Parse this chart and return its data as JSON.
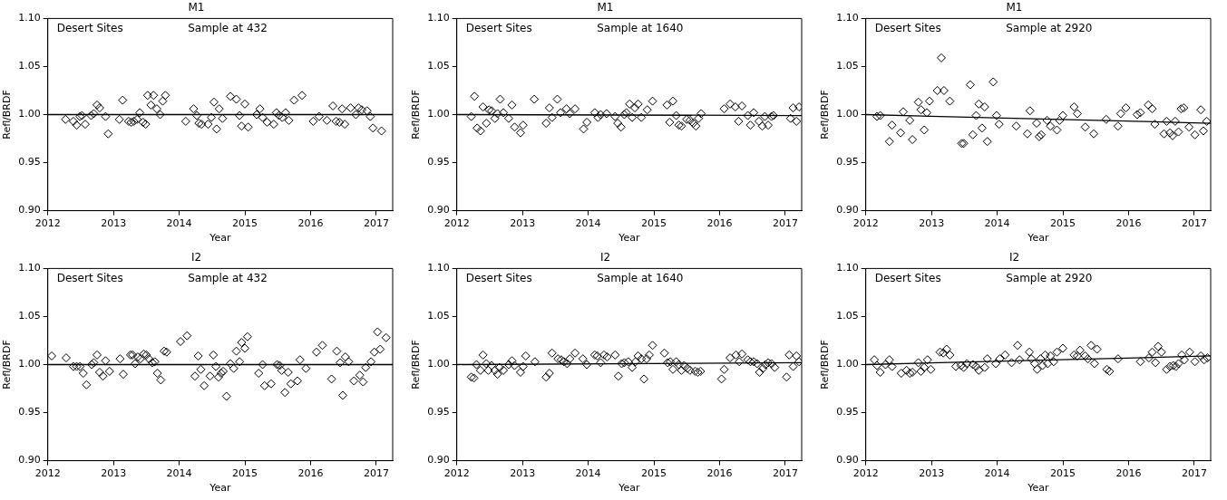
{
  "chart_data": [
    {
      "type": "scatter",
      "title": "M1",
      "xlabel": "Year",
      "ylabel": "Refl/BRDF",
      "annotations": [
        "Desert Sites",
        "Sample at 432"
      ],
      "xlim": [
        2012,
        2017.25
      ],
      "xticks": [
        2012,
        2013,
        2014,
        2015,
        2016,
        2017
      ],
      "ylim": [
        0.9,
        1.1
      ],
      "yticks": [
        {
          "value": 0.9,
          "label": "0.90"
        },
        {
          "value": 0.95,
          "label": "0.95"
        },
        {
          "value": 1.0,
          "label": "1.00"
        },
        {
          "value": 1.05,
          "label": "1.05"
        },
        {
          "value": 1.1,
          "label": "1.10"
        }
      ],
      "marker": "diamond",
      "grid": false,
      "legend": false,
      "series": [
        {
          "color": "#000000",
          "x": [
            2012.27,
            2012.39,
            2012.44,
            2012.49,
            2012.52,
            2012.57,
            2012.66,
            2012.7,
            2012.75,
            2012.79,
            2012.88,
            2012.92,
            2013.09,
            2013.14,
            2013.23,
            2013.27,
            2013.31,
            2013.36,
            2013.4,
            2013.45,
            2013.49,
            2013.52,
            2013.57,
            2013.61,
            2013.66,
            2013.71,
            2013.75,
            2013.79,
            2014.1,
            2014.22,
            2014.27,
            2014.3,
            2014.34,
            2014.44,
            2014.49,
            2014.53,
            2014.57,
            2014.61,
            2014.66,
            2014.78,
            2014.87,
            2014.92,
            2014.95,
            2015.0,
            2015.05,
            2015.18,
            2015.23,
            2015.27,
            2015.34,
            2015.44,
            2015.48,
            2015.52,
            2015.57,
            2015.62,
            2015.67,
            2015.75,
            2015.87,
            2016.04,
            2016.13,
            2016.25,
            2016.34,
            2016.39,
            2016.44,
            2016.48,
            2016.52,
            2016.61,
            2016.69,
            2016.73,
            2016.78,
            2016.86,
            2016.91,
            2016.95,
            2017.08
          ],
          "values": [
            0.995,
            0.993,
            0.989,
            0.998,
            0.999,
            0.99,
            0.999,
            1.001,
            1.01,
            1.007,
            0.998,
            0.98,
            0.995,
            1.015,
            0.993,
            0.992,
            0.993,
            0.995,
            1.002,
            0.992,
            0.99,
            1.02,
            1.01,
            1.02,
            1.006,
            1.0,
            1.014,
            1.02,
            0.993,
            1.006,
            0.999,
            0.991,
            0.99,
            0.99,
            0.997,
            1.013,
            0.985,
            1.006,
            0.996,
            1.019,
            1.016,
            0.999,
            0.988,
            1.011,
            0.987,
            1.0,
            1.006,
            0.997,
            0.992,
            0.99,
            1.002,
            0.999,
            0.997,
            1.002,
            0.994,
            1.015,
            1.02,
            0.993,
            0.998,
            0.994,
            1.009,
            0.993,
            0.992,
            1.006,
            0.99,
            1.007,
            1.0,
            1.007,
            1.005,
            1.004,
            0.998,
            0.986,
            0.983
          ]
        },
        {
          "type": "line",
          "marker": "none",
          "color": "#000000",
          "x": [
            2012,
            2017.25
          ],
          "values": [
            1.0,
            1.0
          ]
        }
      ]
    },
    {
      "type": "scatter",
      "title": "M1",
      "xlabel": "Year",
      "ylabel": "Refl/BRDF",
      "annotations": [
        "Desert Sites",
        "Sample at 1640"
      ],
      "xlim": [
        2012,
        2017.25
      ],
      "xticks": [
        2012,
        2013,
        2014,
        2015,
        2016,
        2017
      ],
      "ylim": [
        0.9,
        1.1
      ],
      "yticks": [
        {
          "value": 0.9,
          "label": "0.90"
        },
        {
          "value": 0.95,
          "label": "0.95"
        },
        {
          "value": 1.0,
          "label": "1.00"
        },
        {
          "value": 1.05,
          "label": "1.05"
        },
        {
          "value": 1.1,
          "label": "1.10"
        }
      ],
      "marker": "diamond",
      "grid": false,
      "legend": false,
      "series": [
        {
          "color": "#000000",
          "x": [
            2012.22,
            2012.27,
            2012.31,
            2012.36,
            2012.4,
            2012.45,
            2012.49,
            2012.53,
            2012.58,
            2012.62,
            2012.66,
            2012.71,
            2012.79,
            2012.84,
            2012.88,
            2012.97,
            2013.01,
            2013.18,
            2013.36,
            2013.41,
            2013.45,
            2013.53,
            2013.58,
            2013.67,
            2013.72,
            2013.8,
            2013.93,
            2013.98,
            2014.1,
            2014.15,
            2014.19,
            2014.28,
            2014.41,
            2014.45,
            2014.5,
            2014.55,
            2014.58,
            2014.63,
            2014.67,
            2014.71,
            2014.76,
            2014.81,
            2014.9,
            2014.98,
            2015.2,
            2015.24,
            2015.29,
            2015.34,
            2015.38,
            2015.42,
            2015.5,
            2015.55,
            2015.6,
            2015.64,
            2015.68,
            2015.72,
            2016.07,
            2016.16,
            2016.24,
            2016.29,
            2016.34,
            2016.43,
            2016.47,
            2016.52,
            2016.6,
            2016.65,
            2016.69,
            2016.74,
            2016.79,
            2016.82,
            2017.08,
            2017.12,
            2017.17,
            2017.21
          ],
          "values": [
            0.998,
            1.019,
            0.986,
            0.983,
            1.008,
            0.991,
            1.005,
            1.004,
            0.996,
            1.001,
            1.016,
            1.002,
            0.996,
            1.01,
            0.987,
            0.981,
            0.989,
            1.016,
            0.991,
            1.007,
            0.997,
            1.016,
            1.002,
            1.006,
            1.001,
            1.006,
            0.985,
            0.992,
            1.002,
            0.997,
            1.0,
            1.001,
            0.998,
            0.991,
            0.987,
            1.0,
            1.002,
            1.011,
            0.997,
            1.007,
            1.011,
            0.997,
            1.005,
            1.014,
            1.01,
            0.992,
            1.014,
            0.999,
            0.989,
            0.988,
            0.995,
            0.994,
            0.991,
            0.988,
            0.996,
            1.001,
            1.006,
            1.011,
            1.008,
            0.993,
            1.009,
            0.999,
            0.989,
            1.002,
            0.993,
            0.988,
            0.998,
            0.989,
            0.998,
            0.999,
            0.996,
            1.007,
            0.993,
            1.008
          ]
        },
        {
          "type": "line",
          "marker": "none",
          "color": "#000000",
          "x": [
            2012,
            2017.25
          ],
          "values": [
            1.0,
            0.999
          ]
        }
      ]
    },
    {
      "type": "scatter",
      "title": "M1",
      "xlabel": "Year",
      "ylabel": "Refl/BRDF",
      "annotations": [
        "Desert Sites",
        "Sample at 2920"
      ],
      "xlim": [
        2012,
        2017.25
      ],
      "xticks": [
        2012,
        2013,
        2014,
        2015,
        2016,
        2017
      ],
      "ylim": [
        0.9,
        1.1
      ],
      "yticks": [
        {
          "value": 0.9,
          "label": "0.90"
        },
        {
          "value": 0.95,
          "label": "0.95"
        },
        {
          "value": 1.0,
          "label": "1.00"
        },
        {
          "value": 1.05,
          "label": "1.05"
        },
        {
          "value": 1.1,
          "label": "1.10"
        }
      ],
      "marker": "diamond",
      "grid": false,
      "legend": false,
      "series": [
        {
          "color": "#000000",
          "x": [
            2012.17,
            2012.22,
            2012.36,
            2012.4,
            2012.53,
            2012.57,
            2012.67,
            2012.71,
            2012.8,
            2012.84,
            2012.89,
            2012.93,
            2012.97,
            2013.09,
            2013.15,
            2013.19,
            2013.28,
            2013.46,
            2013.49,
            2013.59,
            2013.63,
            2013.68,
            2013.72,
            2013.77,
            2013.81,
            2013.85,
            2013.94,
            2013.99,
            2014.03,
            2014.29,
            2014.46,
            2014.5,
            2014.6,
            2014.64,
            2014.67,
            2014.76,
            2014.81,
            2014.91,
            2014.95,
            2015.0,
            2015.17,
            2015.22,
            2015.34,
            2015.47,
            2015.66,
            2015.84,
            2015.88,
            2015.96,
            2016.13,
            2016.18,
            2016.3,
            2016.36,
            2016.4,
            2016.54,
            2016.58,
            2016.63,
            2016.67,
            2016.71,
            2016.76,
            2016.8,
            2016.84,
            2016.92,
            2017.01,
            2017.1,
            2017.14,
            2017.19
          ],
          "values": [
            0.998,
            0.999,
            0.972,
            0.989,
            0.981,
            1.003,
            0.994,
            0.974,
            1.013,
            1.005,
            0.984,
            1.002,
            1.014,
            1.025,
            1.059,
            1.025,
            1.014,
            0.97,
            0.97,
            1.031,
            0.979,
            0.999,
            1.011,
            0.986,
            1.008,
            0.972,
            1.034,
            0.999,
            0.99,
            0.988,
            0.98,
            1.004,
            0.991,
            0.977,
            0.979,
            0.994,
            0.988,
            0.984,
            0.994,
            0.999,
            1.008,
            1.001,
            0.987,
            0.98,
            0.995,
            0.988,
            1.001,
            1.007,
            1.0,
            1.002,
            1.01,
            1.006,
            0.99,
            0.98,
            0.993,
            0.981,
            0.978,
            0.993,
            0.982,
            1.006,
            1.007,
            0.987,
            0.979,
            1.005,
            0.983,
            0.993
          ]
        },
        {
          "type": "line",
          "marker": "none",
          "color": "#000000",
          "x": [
            2012,
            2017.25
          ],
          "values": [
            1.0,
            0.991
          ]
        }
      ]
    },
    {
      "type": "scatter",
      "title": "I2",
      "xlabel": "Year",
      "ylabel": "Refl/BRDF",
      "annotations": [
        "Desert Sites",
        "Sample at 432"
      ],
      "xlim": [
        2012,
        2017.25
      ],
      "xticks": [
        2012,
        2013,
        2014,
        2015,
        2016,
        2017
      ],
      "ylim": [
        0.9,
        1.1
      ],
      "yticks": [
        {
          "value": 0.9,
          "label": "0.90"
        },
        {
          "value": 0.95,
          "label": "0.95"
        },
        {
          "value": 1.0,
          "label": "1.00"
        },
        {
          "value": 1.05,
          "label": "1.05"
        },
        {
          "value": 1.1,
          "label": "1.10"
        }
      ],
      "marker": "diamond",
      "grid": false,
      "legend": false,
      "series": [
        {
          "color": "#000000",
          "x": [
            2012.06,
            2012.28,
            2012.39,
            2012.44,
            2012.49,
            2012.54,
            2012.59,
            2012.67,
            2012.7,
            2012.75,
            2012.79,
            2012.84,
            2012.88,
            2012.94,
            2013.1,
            2013.15,
            2013.26,
            2013.29,
            2013.33,
            2013.37,
            2013.41,
            2013.46,
            2013.5,
            2013.54,
            2013.59,
            2013.63,
            2013.67,
            2013.72,
            2013.77,
            2013.81,
            2014.02,
            2014.12,
            2014.24,
            2014.29,
            2014.33,
            2014.38,
            2014.47,
            2014.52,
            2014.56,
            2014.6,
            2014.64,
            2014.67,
            2014.72,
            2014.78,
            2014.83,
            2014.87,
            2014.92,
            2014.95,
            2015.0,
            2015.04,
            2015.21,
            2015.27,
            2015.3,
            2015.4,
            2015.49,
            2015.53,
            2015.56,
            2015.61,
            2015.66,
            2015.7,
            2015.8,
            2015.84,
            2015.93,
            2016.09,
            2016.18,
            2016.32,
            2016.4,
            2016.45,
            2016.49,
            2016.53,
            2016.58,
            2016.66,
            2016.75,
            2016.8,
            2016.84,
            2016.92,
            2016.97,
            2017.02,
            2017.06,
            2017.15
          ],
          "values": [
            1.009,
            1.007,
            0.998,
            0.998,
            0.998,
            0.991,
            0.979,
            1.0,
            1.002,
            1.01,
            0.992,
            0.988,
            1.004,
            0.993,
            1.006,
            0.99,
            1.01,
            1.01,
            1.001,
            1.008,
            1.006,
            1.011,
            1.01,
            1.006,
            1.002,
            1.003,
            0.991,
            0.984,
            1.014,
            1.013,
            1.024,
            1.03,
            0.988,
            1.009,
            0.995,
            0.978,
            0.988,
            1.01,
            0.998,
            0.987,
            0.991,
            0.993,
            0.967,
            1.001,
            0.996,
            1.014,
            1.003,
            1.023,
            1.017,
            1.029,
            0.991,
            1.0,
            0.978,
            0.98,
            1.0,
            0.999,
            0.994,
            0.971,
            0.992,
            0.98,
            0.983,
            1.005,
            0.996,
            1.013,
            1.02,
            0.985,
            1.014,
            1.002,
            0.968,
            1.008,
            1.003,
            0.983,
            0.989,
            0.982,
            0.997,
            1.003,
            1.013,
            1.034,
            1.016,
            1.028
          ]
        },
        {
          "type": "line",
          "marker": "none",
          "color": "#000000",
          "x": [
            2012,
            2017.25
          ],
          "values": [
            1.0,
            1.0
          ]
        }
      ]
    },
    {
      "type": "scatter",
      "title": "I2",
      "xlabel": "Year",
      "ylabel": "Refl/BRDF",
      "annotations": [
        "Desert Sites",
        "Sample at 1640"
      ],
      "xlim": [
        2012,
        2017.25
      ],
      "xticks": [
        2012,
        2013,
        2014,
        2015,
        2016,
        2017
      ],
      "ylim": [
        0.9,
        1.1
      ],
      "yticks": [
        {
          "value": 0.9,
          "label": "0.90"
        },
        {
          "value": 0.95,
          "label": "0.95"
        },
        {
          "value": 1.0,
          "label": "1.00"
        },
        {
          "value": 1.05,
          "label": "1.05"
        },
        {
          "value": 1.1,
          "label": "1.10"
        }
      ],
      "marker": "diamond",
      "grid": false,
      "legend": false,
      "series": [
        {
          "color": "#000000",
          "x": [
            2012.22,
            2012.26,
            2012.3,
            2012.36,
            2012.4,
            2012.45,
            2012.48,
            2012.53,
            2012.58,
            2012.62,
            2012.65,
            2012.71,
            2012.79,
            2012.84,
            2012.88,
            2012.97,
            2013.01,
            2013.05,
            2013.19,
            2013.36,
            2013.41,
            2013.45,
            2013.54,
            2013.59,
            2013.63,
            2013.68,
            2013.72,
            2013.8,
            2013.92,
            2013.98,
            2014.1,
            2014.14,
            2014.19,
            2014.24,
            2014.29,
            2014.41,
            2014.46,
            2014.51,
            2014.55,
            2014.61,
            2014.67,
            2014.72,
            2014.76,
            2014.81,
            2014.85,
            2014.89,
            2014.93,
            2014.98,
            2015.16,
            2015.21,
            2015.25,
            2015.29,
            2015.34,
            2015.38,
            2015.42,
            2015.46,
            2015.51,
            2015.55,
            2015.63,
            2015.67,
            2015.71,
            2016.03,
            2016.07,
            2016.16,
            2016.25,
            2016.3,
            2016.34,
            2016.43,
            2016.47,
            2016.52,
            2016.57,
            2016.61,
            2016.66,
            2016.7,
            2016.74,
            2016.79,
            2016.84,
            2017.02,
            2017.06,
            2017.12,
            2017.17,
            2017.21
          ],
          "values": [
            0.987,
            0.986,
            1.0,
            0.994,
            1.01,
            1.001,
            0.994,
            0.999,
            0.994,
            0.99,
            0.997,
            0.994,
            1.0,
            1.004,
            0.999,
            0.992,
            0.998,
            1.009,
            1.003,
            0.987,
            0.991,
            1.012,
            1.006,
            1.005,
            1.003,
            1.001,
            1.006,
            1.012,
            1.006,
            1.0,
            1.01,
            1.009,
            1.002,
            1.01,
            1.008,
            1.01,
            0.988,
            1.001,
            1.002,
            1.003,
            0.997,
            1.003,
            1.009,
            1.006,
            0.985,
            1.006,
            1.01,
            1.02,
            1.012,
            1.002,
            1.003,
            0.995,
            1.003,
            1.0,
            0.994,
            0.999,
            0.996,
            0.994,
            0.993,
            0.992,
            0.993,
            0.985,
            0.995,
            1.007,
            1.01,
            1.003,
            1.011,
            1.005,
            1.003,
            1.003,
            1.001,
            0.992,
            0.996,
            1.0,
            1.002,
            1.001,
            0.997,
            0.987,
            1.01,
            0.998,
            1.009,
            1.003
          ]
        },
        {
          "type": "line",
          "marker": "none",
          "color": "#000000",
          "x": [
            2012,
            2017.25
          ],
          "values": [
            1.0,
            1.002
          ]
        }
      ]
    },
    {
      "type": "scatter",
      "title": "I2",
      "xlabel": "Year",
      "ylabel": "Refl/BRDF",
      "annotations": [
        "Desert Sites",
        "Sample at 2920"
      ],
      "xlim": [
        2012,
        2017.25
      ],
      "xticks": [
        2012,
        2013,
        2014,
        2015,
        2016,
        2017
      ],
      "ylim": [
        0.9,
        1.1
      ],
      "yticks": [
        {
          "value": 0.9,
          "label": "0.90"
        },
        {
          "value": 0.95,
          "label": "0.95"
        },
        {
          "value": 1.0,
          "label": "1.00"
        },
        {
          "value": 1.05,
          "label": "1.05"
        },
        {
          "value": 1.1,
          "label": "1.10"
        }
      ],
      "marker": "diamond",
      "grid": false,
      "legend": false,
      "series": [
        {
          "color": "#000000",
          "x": [
            2012.13,
            2012.17,
            2012.22,
            2012.3,
            2012.36,
            2012.4,
            2012.54,
            2012.62,
            2012.67,
            2012.71,
            2012.8,
            2012.84,
            2012.89,
            2012.94,
            2012.99,
            2013.13,
            2013.18,
            2013.23,
            2013.28,
            2013.37,
            2013.45,
            2013.49,
            2013.54,
            2013.63,
            2013.68,
            2013.72,
            2013.81,
            2013.85,
            2013.98,
            2014.04,
            2014.12,
            2014.22,
            2014.31,
            2014.34,
            2014.49,
            2014.52,
            2014.57,
            2014.61,
            2014.66,
            2014.69,
            2014.73,
            2014.77,
            2014.81,
            2014.86,
            2014.91,
            2015.0,
            2015.17,
            2015.22,
            2015.26,
            2015.34,
            2015.38,
            2015.43,
            2015.48,
            2015.52,
            2015.67,
            2015.71,
            2015.84,
            2016.18,
            2016.31,
            2016.36,
            2016.41,
            2016.45,
            2016.5,
            2016.58,
            2016.63,
            2016.68,
            2016.72,
            2016.76,
            2016.81,
            2016.85,
            2016.93,
            2017.01,
            2017.1,
            2017.15,
            2017.2
          ],
          "values": [
            1.005,
            0.999,
            0.992,
            1.0,
            1.005,
            0.998,
            0.991,
            0.994,
            0.991,
            0.992,
            1.002,
            0.993,
            0.997,
            1.005,
            0.995,
            1.013,
            1.012,
            1.016,
            1.01,
            0.998,
            0.999,
            0.997,
            1.001,
            1.0,
            0.998,
            0.994,
            0.997,
            1.006,
            1.001,
            1.006,
            1.01,
            1.002,
            1.02,
            1.005,
            1.013,
            1.006,
            1.001,
            0.995,
            1.006,
            0.999,
            1.01,
            1.001,
            1.009,
            1.003,
            1.013,
            1.017,
            1.01,
            1.009,
            1.015,
            1.009,
            1.006,
            1.02,
            1.001,
            1.016,
            0.995,
            0.993,
            1.006,
            1.003,
            1.007,
            1.013,
            1.002,
            1.019,
            1.013,
            0.995,
            0.998,
            0.999,
            0.998,
            1.001,
            1.01,
            1.005,
            1.013,
            1.003,
            1.009,
            1.005,
            1.007
          ]
        },
        {
          "type": "line",
          "marker": "none",
          "color": "#000000",
          "x": [
            2012,
            2017.25
          ],
          "values": [
            1.0,
            1.009
          ]
        }
      ]
    }
  ]
}
